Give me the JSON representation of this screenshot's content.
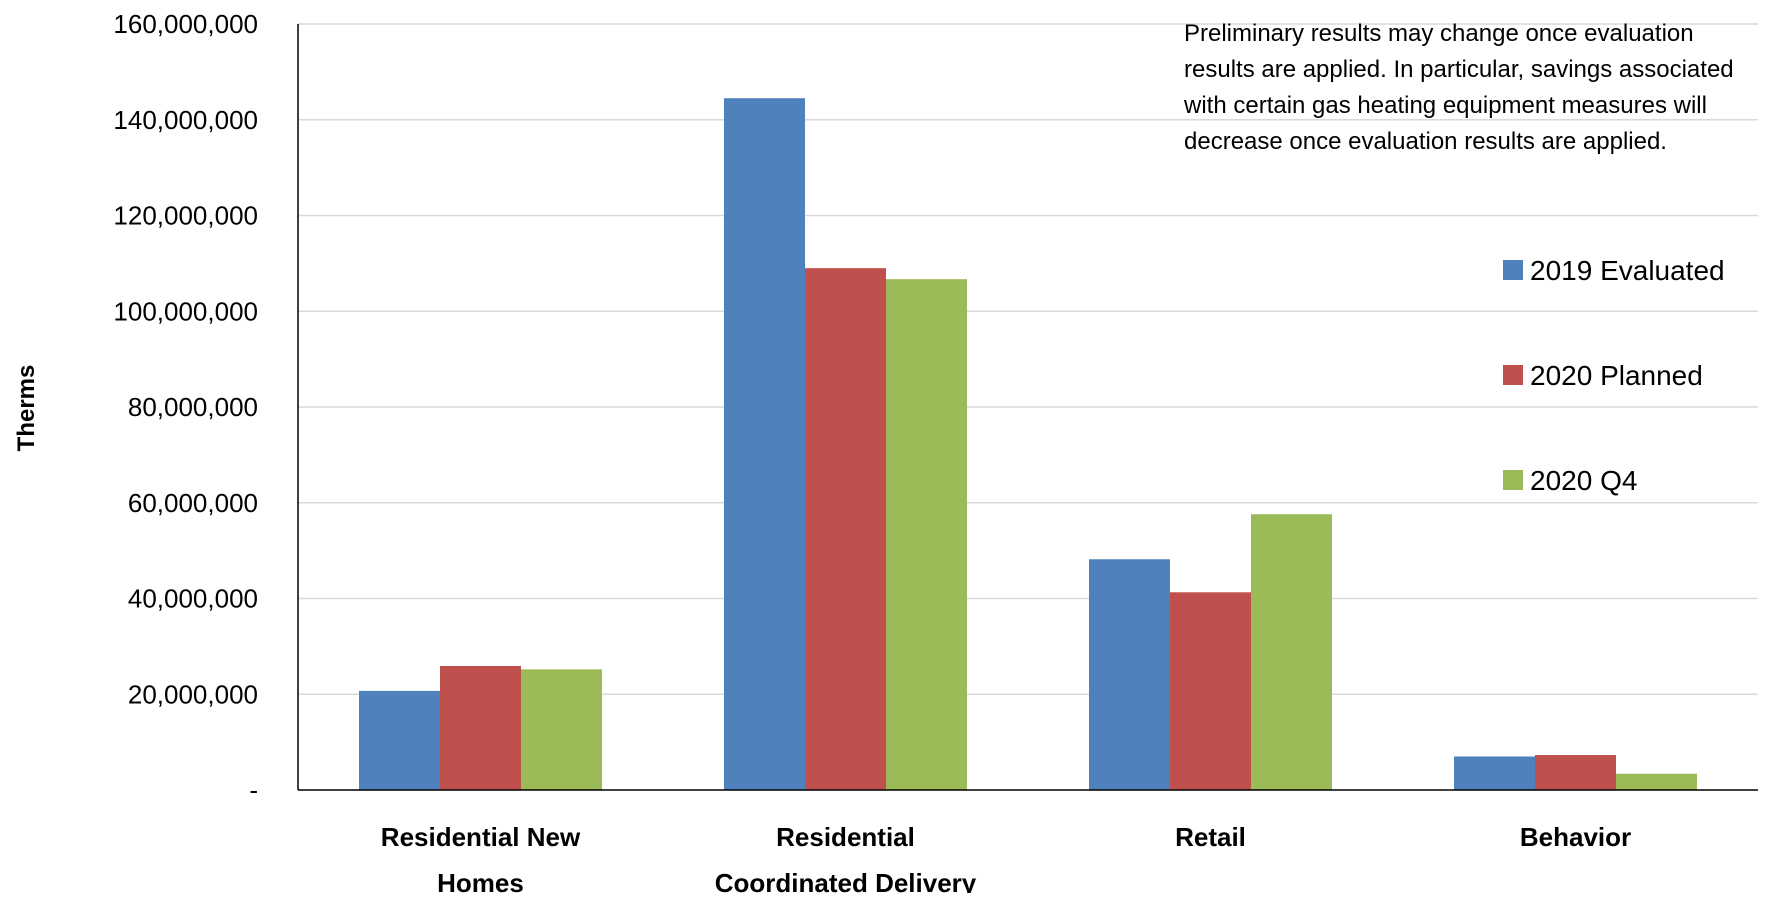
{
  "chart_data": {
    "type": "bar",
    "ylabel": "Therms",
    "ylim": [
      0,
      160000000
    ],
    "ytick_values": [
      0,
      20000000,
      40000000,
      60000000,
      80000000,
      100000000,
      120000000,
      140000000,
      160000000
    ],
    "ytick_labels": [
      "-",
      "20,000,000",
      "40,000,000",
      "60,000,000",
      "80,000,000",
      "100,000,000",
      "120,000,000",
      "140,000,000",
      "160,000,000"
    ],
    "categories": [
      [
        "Residential New",
        "Homes"
      ],
      [
        "Residential",
        "Coordinated Delivery"
      ],
      [
        "Retail"
      ],
      [
        "Behavior"
      ]
    ],
    "series": [
      {
        "name": "2019 Evaluated",
        "color": "#4F81BD",
        "values": [
          20700000,
          144500000,
          48200000,
          7000000
        ]
      },
      {
        "name": "2020 Planned",
        "color": "#C0504D",
        "values": [
          25900000,
          109000000,
          41300000,
          7300000
        ]
      },
      {
        "name": "2020 Q4",
        "color": "#9BBB59",
        "values": [
          25200000,
          106700000,
          57600000,
          3400000
        ]
      }
    ],
    "grid": true,
    "legend_position": "right",
    "annotation": "Preliminary results may change once evaluation results are applied. In particular, savings associated with certain gas heating equipment measures will decrease once evaluation results are applied."
  }
}
